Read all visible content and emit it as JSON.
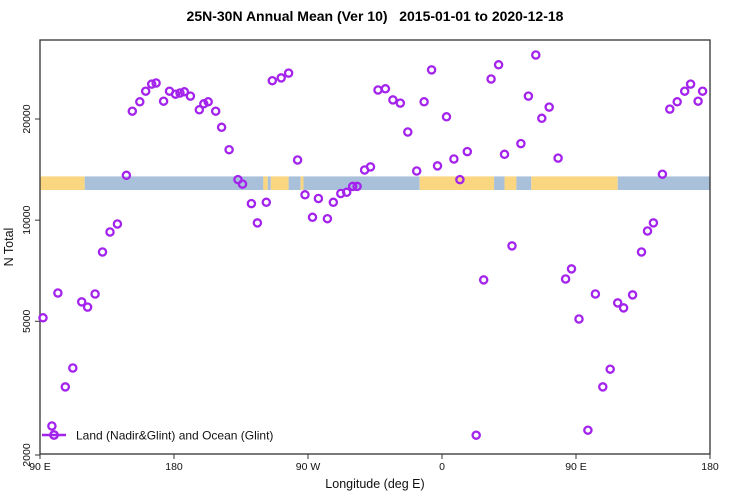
{
  "title": "25N-30N Annual Mean (Ver 10)   2015-01-01 to 2020-12-18",
  "colors": {
    "point": "#A322EC",
    "land": "#FBD681",
    "ocean": "#A9C0DB",
    "axis": "#333333",
    "text": "#111111"
  },
  "chart_data": {
    "type": "scatter",
    "title": "25N-30N Annual Mean (Ver 10)   2015-01-01 to 2020-12-18",
    "xlabel": "Longitude (deg E)",
    "ylabel": "N Total",
    "legend_label": "Land (Nadir&Glint) and Ocean (Glint)",
    "x_unit": "deg E, continuous 90..540 (axis wraps past 360)",
    "x_domain": [
      90,
      540
    ],
    "y_scale": "log",
    "y_range": [
      2030,
      34400
    ],
    "grid": false,
    "legend_position": "bottom-left",
    "x_ticks": [
      {
        "v": 90,
        "label": "90 E"
      },
      {
        "v": 180,
        "label": "180"
      },
      {
        "v": 270,
        "label": "90 W"
      },
      {
        "v": 360,
        "label": "0"
      },
      {
        "v": 450,
        "label": "90 E"
      },
      {
        "v": 540,
        "label": "180"
      }
    ],
    "y_ticks": [
      {
        "v": 2000,
        "label": "2000"
      },
      {
        "v": 5000,
        "label": "5000"
      },
      {
        "v": 10000,
        "label": "10000"
      },
      {
        "v": 20000,
        "label": "20000"
      }
    ],
    "points": [
      [
        152,
        21100
      ],
      [
        157,
        22500
      ],
      [
        161,
        24200
      ],
      [
        165,
        25400
      ],
      [
        168,
        25600
      ],
      [
        173,
        22600
      ],
      [
        177,
        24200
      ],
      [
        181,
        23700
      ],
      [
        184,
        23900
      ],
      [
        187,
        24100
      ],
      [
        191,
        23400
      ],
      [
        197,
        21300
      ],
      [
        200,
        22200
      ],
      [
        203,
        22500
      ],
      [
        208,
        21100
      ],
      [
        212,
        18900
      ],
      [
        217,
        16200
      ],
      [
        148,
        13600
      ],
      [
        223,
        13200
      ],
      [
        226,
        12800
      ],
      [
        232,
        11200
      ],
      [
        242,
        11300
      ],
      [
        236,
        9810
      ],
      [
        137,
        9220
      ],
      [
        142,
        9740
      ],
      [
        132,
        8040
      ],
      [
        246,
        26000
      ],
      [
        252,
        26500
      ],
      [
        257,
        27400
      ],
      [
        317,
        24400
      ],
      [
        322,
        24600
      ],
      [
        327,
        22800
      ],
      [
        332,
        22300
      ],
      [
        348,
        22500
      ],
      [
        353,
        28000
      ],
      [
        363,
        20300
      ],
      [
        337,
        18300
      ],
      [
        263,
        15100
      ],
      [
        308,
        14100
      ],
      [
        312,
        14400
      ],
      [
        343,
        14000
      ],
      [
        357,
        14500
      ],
      [
        368,
        15200
      ],
      [
        377,
        16000
      ],
      [
        372,
        13200
      ],
      [
        268,
        11900
      ],
      [
        277,
        11600
      ],
      [
        287,
        11300
      ],
      [
        292,
        12000
      ],
      [
        296,
        12100
      ],
      [
        300,
        12600
      ],
      [
        303,
        12600
      ],
      [
        273,
        10200
      ],
      [
        283,
        10100
      ],
      [
        423,
        31000
      ],
      [
        398,
        29000
      ],
      [
        393,
        26300
      ],
      [
        418,
        23400
      ],
      [
        432,
        21700
      ],
      [
        427,
        20100
      ],
      [
        413,
        16900
      ],
      [
        402,
        15700
      ],
      [
        438,
        15300
      ],
      [
        513,
        21400
      ],
      [
        518,
        22500
      ],
      [
        523,
        24200
      ],
      [
        527,
        25400
      ],
      [
        535,
        24200
      ],
      [
        532,
        22600
      ],
      [
        508,
        13700
      ],
      [
        502,
        9810
      ],
      [
        498,
        9280
      ],
      [
        407,
        8380
      ],
      [
        494,
        8040
      ],
      [
        102,
        6070
      ],
      [
        127,
        6030
      ],
      [
        118,
        5710
      ],
      [
        122,
        5510
      ],
      [
        92,
        5120
      ],
      [
        112,
        3630
      ],
      [
        107,
        3190
      ],
      [
        98,
        2440
      ],
      [
        388,
        6640
      ],
      [
        383,
        2290
      ],
      [
        447,
        7160
      ],
      [
        443,
        6680
      ],
      [
        463,
        6030
      ],
      [
        478,
        5670
      ],
      [
        482,
        5480
      ],
      [
        488,
        5990
      ],
      [
        452,
        5080
      ],
      [
        473,
        3600
      ],
      [
        468,
        3190
      ],
      [
        458,
        2370
      ]
    ],
    "surface_strip": {
      "description": "map strip of the 25N-30N latitude band along longitude",
      "value_range": [
        12300,
        13500
      ],
      "segments": [
        {
          "from": 90,
          "to": 120,
          "surface": "land"
        },
        {
          "from": 120,
          "to": 240,
          "surface": "ocean"
        },
        {
          "from": 240,
          "to": 243,
          "surface": "land"
        },
        {
          "from": 243,
          "to": 245,
          "surface": "ocean"
        },
        {
          "from": 245,
          "to": 257,
          "surface": "land"
        },
        {
          "from": 257,
          "to": 265,
          "surface": "ocean"
        },
        {
          "from": 265,
          "to": 267,
          "surface": "land"
        },
        {
          "from": 267,
          "to": 345,
          "surface": "ocean"
        },
        {
          "from": 345,
          "to": 395,
          "surface": "land"
        },
        {
          "from": 395,
          "to": 402,
          "surface": "ocean"
        },
        {
          "from": 402,
          "to": 410,
          "surface": "land"
        },
        {
          "from": 410,
          "to": 420,
          "surface": "ocean"
        },
        {
          "from": 420,
          "to": 478,
          "surface": "land"
        },
        {
          "from": 478,
          "to": 540,
          "surface": "ocean"
        }
      ]
    }
  }
}
